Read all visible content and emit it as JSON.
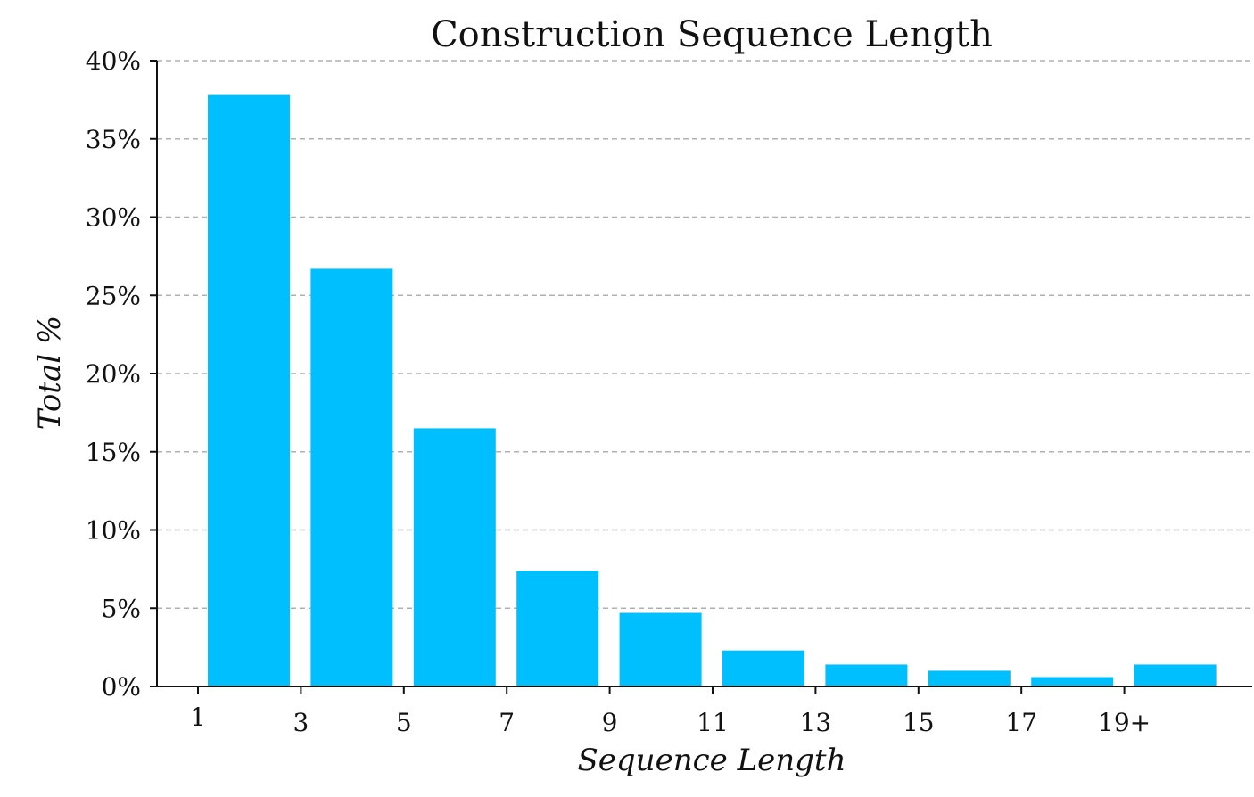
{
  "chart_data": {
    "type": "bar",
    "title": "Construction Sequence Length",
    "xlabel": "Sequence Length",
    "ylabel": "Total %",
    "ylim": [
      0,
      40
    ],
    "yticks": [
      "0%",
      "5%",
      "10%",
      "15%",
      "20%",
      "25%",
      "30%",
      "35%",
      "40%"
    ],
    "xticks": [
      "1",
      "3",
      "5",
      "7",
      "9",
      "11",
      "13",
      "15",
      "17",
      "19+"
    ],
    "categories": [
      "1-2",
      "3-4",
      "5-6",
      "7-8",
      "9-10",
      "11-12",
      "13-14",
      "15-16",
      "17-18",
      "19+"
    ],
    "values": [
      37.8,
      26.7,
      16.5,
      7.4,
      4.7,
      2.3,
      1.4,
      1.0,
      0.6,
      1.4
    ],
    "grid": true,
    "grid_style": "dashed-horizontal",
    "bar_color": "#00bfff",
    "axis_color": "#111111",
    "grid_color": "#b0b0b0"
  }
}
